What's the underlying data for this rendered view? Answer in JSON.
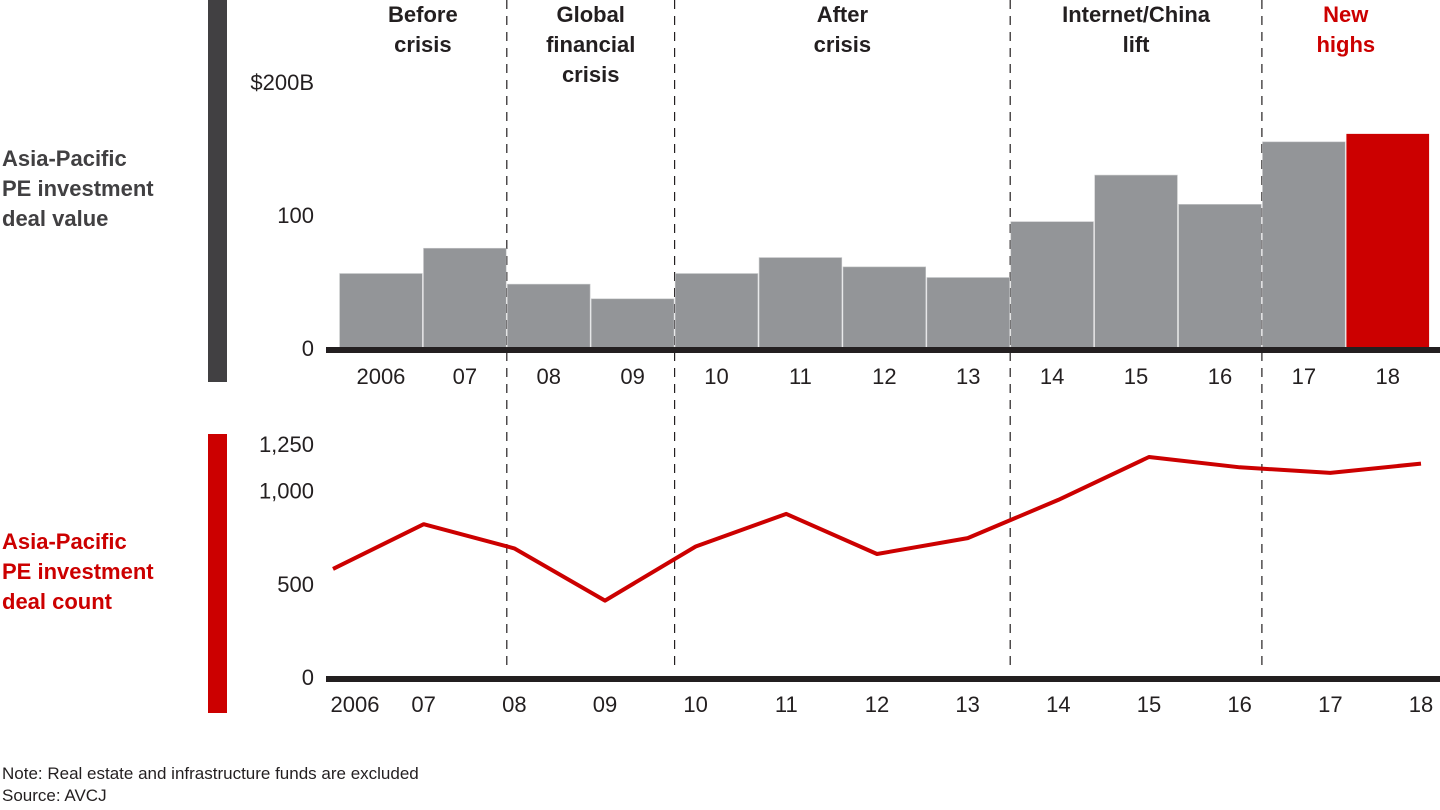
{
  "colors": {
    "bar_gray": "#939598",
    "highlight_red": "#cc0000",
    "axis_dark": "#231f20",
    "side_bar_dark": "#414042",
    "title_dark": "#414042"
  },
  "eras": [
    {
      "lines": [
        "Before",
        "crisis"
      ],
      "color": "#231f20"
    },
    {
      "lines": [
        "Global",
        "financial",
        "crisis"
      ],
      "color": "#231f20"
    },
    {
      "lines": [
        "After",
        "crisis"
      ],
      "color": "#231f20"
    },
    {
      "lines": [
        "Internet/China",
        "lift"
      ],
      "color": "#231f20"
    },
    {
      "lines": [
        "New",
        "highs"
      ],
      "color": "#cc0000"
    }
  ],
  "chart_data": [
    {
      "type": "bar",
      "title": "Asia-Pacific PE investment deal value",
      "title_lines": [
        "Asia-Pacific",
        "PE investment",
        "deal value"
      ],
      "xlabel": "",
      "ylabel": "",
      "categories": [
        "2006",
        "07",
        "08",
        "09",
        "10",
        "11",
        "12",
        "13",
        "14",
        "15",
        "16",
        "17",
        "18"
      ],
      "values": [
        56,
        75,
        48,
        37,
        56,
        68,
        61,
        53,
        95,
        130,
        108,
        155,
        161
      ],
      "highlight_index": 12,
      "yticks": [
        0,
        100,
        200
      ],
      "ytick_labels": [
        "0",
        "100",
        "$200B"
      ],
      "ylim": [
        0,
        200
      ],
      "unit": "$B",
      "grid": false
    },
    {
      "type": "line",
      "title": "Asia-Pacific PE investment deal count",
      "title_lines": [
        "Asia-Pacific",
        "PE investment",
        "deal count"
      ],
      "xlabel": "",
      "ylabel": "",
      "categories": [
        "2006",
        "07",
        "08",
        "09",
        "10",
        "11",
        "12",
        "13",
        "14",
        "15",
        "16",
        "17",
        "18"
      ],
      "values": [
        580,
        820,
        690,
        410,
        700,
        875,
        660,
        745,
        950,
        1180,
        1125,
        1095,
        1145
      ],
      "yticks": [
        0,
        500,
        1000,
        1250
      ],
      "ytick_labels": [
        "0",
        "500",
        "1,000",
        "1,250"
      ],
      "ylim": [
        0,
        1250
      ],
      "grid": false
    }
  ],
  "era_boundaries_after_index": [
    1,
    3,
    7,
    10
  ],
  "footer": {
    "note": "Note: Real estate and infrastructure funds are excluded",
    "source": "Source: AVCJ"
  }
}
